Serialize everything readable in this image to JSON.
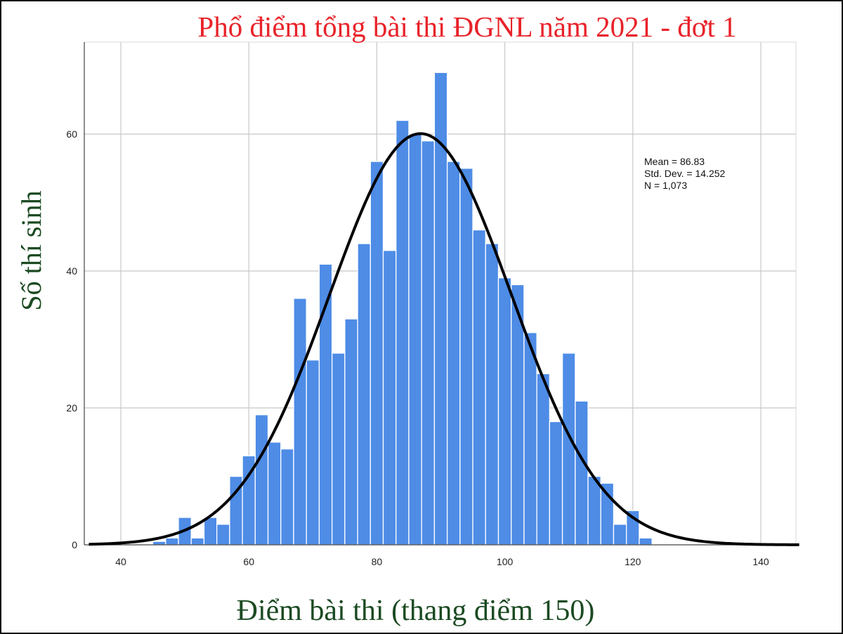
{
  "chart_data": {
    "type": "bar",
    "title": "Phổ điểm tổng bài thi ĐGNL năm 2021 - đơt 1",
    "xlabel": "Điểm bài thi (thang điểm 150)",
    "ylabel": "Số thí sinh",
    "xlim": [
      35,
      146
    ],
    "ylim": [
      0,
      72
    ],
    "grid": true,
    "x_ticks": [
      40,
      60,
      80,
      100,
      120,
      140
    ],
    "x_tick_labels": [
      "40",
      "60",
      "80",
      "100",
      "120",
      "140"
    ],
    "y_ticks": [
      0,
      20,
      40,
      60
    ],
    "y_tick_labels": [
      "0",
      "20",
      "40",
      "60"
    ],
    "bin_width": 2,
    "bins": [
      {
        "x0": 45,
        "count": 0.5
      },
      {
        "x0": 47,
        "count": 1
      },
      {
        "x0": 49,
        "count": 4
      },
      {
        "x0": 51,
        "count": 1
      },
      {
        "x0": 53,
        "count": 4
      },
      {
        "x0": 55,
        "count": 3
      },
      {
        "x0": 57,
        "count": 10
      },
      {
        "x0": 59,
        "count": 13
      },
      {
        "x0": 61,
        "count": 19
      },
      {
        "x0": 63,
        "count": 15
      },
      {
        "x0": 65,
        "count": 14
      },
      {
        "x0": 67,
        "count": 36
      },
      {
        "x0": 69,
        "count": 27
      },
      {
        "x0": 71,
        "count": 41
      },
      {
        "x0": 73,
        "count": 28
      },
      {
        "x0": 75,
        "count": 33
      },
      {
        "x0": 77,
        "count": 44
      },
      {
        "x0": 79,
        "count": 56
      },
      {
        "x0": 81,
        "count": 43
      },
      {
        "x0": 83,
        "count": 62
      },
      {
        "x0": 85,
        "count": 60
      },
      {
        "x0": 87,
        "count": 59
      },
      {
        "x0": 89,
        "count": 69
      },
      {
        "x0": 91,
        "count": 56
      },
      {
        "x0": 93,
        "count": 55
      },
      {
        "x0": 95,
        "count": 46
      },
      {
        "x0": 97,
        "count": 44
      },
      {
        "x0": 99,
        "count": 39
      },
      {
        "x0": 101,
        "count": 38
      },
      {
        "x0": 103,
        "count": 31
      },
      {
        "x0": 105,
        "count": 25
      },
      {
        "x0": 107,
        "count": 18
      },
      {
        "x0": 109,
        "count": 28
      },
      {
        "x0": 111,
        "count": 21
      },
      {
        "x0": 113,
        "count": 10
      },
      {
        "x0": 115,
        "count": 9
      },
      {
        "x0": 117,
        "count": 3
      },
      {
        "x0": 119,
        "count": 5
      },
      {
        "x0": 121,
        "count": 1
      }
    ],
    "normal_curve": {
      "mean": 86.83,
      "sd": 14.252,
      "n": 1073
    },
    "stats_text": [
      "Mean = 86.83",
      "Std. Dev. = 14.252",
      "N = 1,073"
    ],
    "colors": {
      "bar": "#4e8ce6",
      "bar_edge": "#ffffff",
      "curve": "#000000",
      "grid": "#c8c8c8",
      "title": "#e8232a",
      "axis_label": "#1b4a22"
    }
  }
}
